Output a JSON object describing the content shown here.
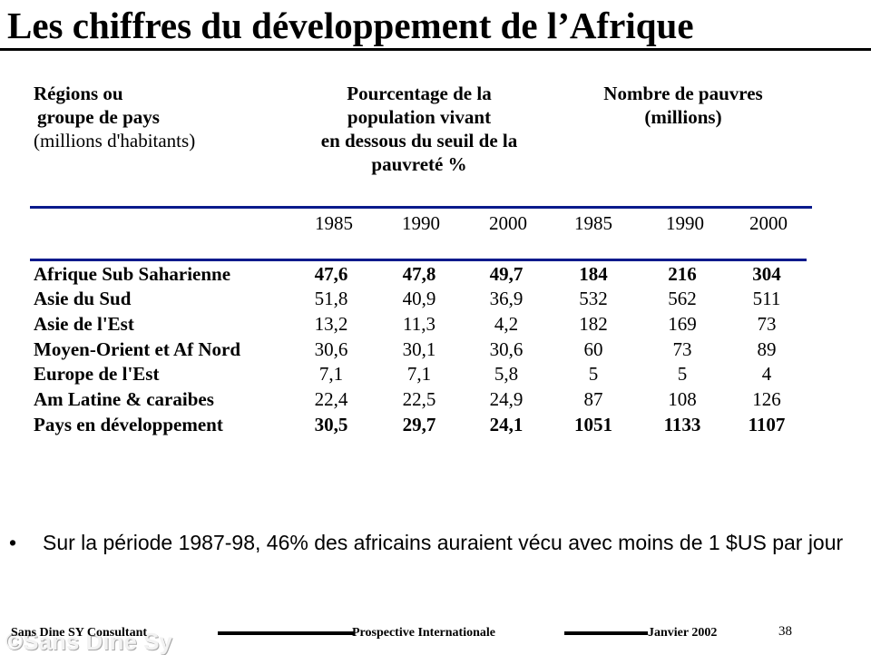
{
  "title": "Les chiffres du développement de l’Afrique",
  "header": {
    "region_line1": "Régions ou",
    "region_line2": "groupe de pays",
    "region_line3": "(millions d'habitants)",
    "pct_line1": "Pourcentage de la",
    "pct_line2": "population vivant",
    "pct_line3": "en dessous du seuil de la",
    "pct_line4": "pauvreté %",
    "num_line1": "Nombre de pauvres",
    "num_line2": "(millions)"
  },
  "years": [
    "1985",
    "1990",
    "2000",
    "1985",
    "1990",
    "2000"
  ],
  "rows": [
    {
      "label": "Afrique Sub Saharienne",
      "values": [
        "47,6",
        "47,8",
        "49,7",
        "184",
        "216",
        "304"
      ]
    },
    {
      "label": "Asie du Sud",
      "values": [
        "51,8",
        "40,9",
        "36,9",
        "532",
        "562",
        "511"
      ]
    },
    {
      "label": "Asie de l'Est",
      "values": [
        "13,2",
        "11,3",
        "4,2",
        "182",
        "169",
        "73"
      ]
    },
    {
      "label": "Moyen-Orient et Af Nord",
      "values": [
        "30,6",
        "30,1",
        "30,6",
        "60",
        "73",
        "89"
      ]
    },
    {
      "label": "Europe de l'Est",
      "values": [
        "7,1",
        "7,1",
        "5,8",
        "5",
        "5",
        "4"
      ]
    },
    {
      "label": "Am Latine & caraibes",
      "values": [
        "22,4",
        "22,5",
        "24,9",
        "87",
        "108",
        "126"
      ]
    },
    {
      "label": "Pays en développement",
      "values": [
        "30,5",
        "29,7",
        "24,1",
        "1051",
        "1133",
        "1107"
      ]
    }
  ],
  "bullet": {
    "symbol": "•",
    "text": "Sur la période 1987-98, 46% des africains auraient vécu avec moins de 1 $US par jour"
  },
  "footer": {
    "left": "Sans Dine SY Consultant",
    "middle": "Prospective Internationale",
    "right": "Janvier 2002",
    "page": "38",
    "watermark": "©Sans Dine Sy"
  }
}
